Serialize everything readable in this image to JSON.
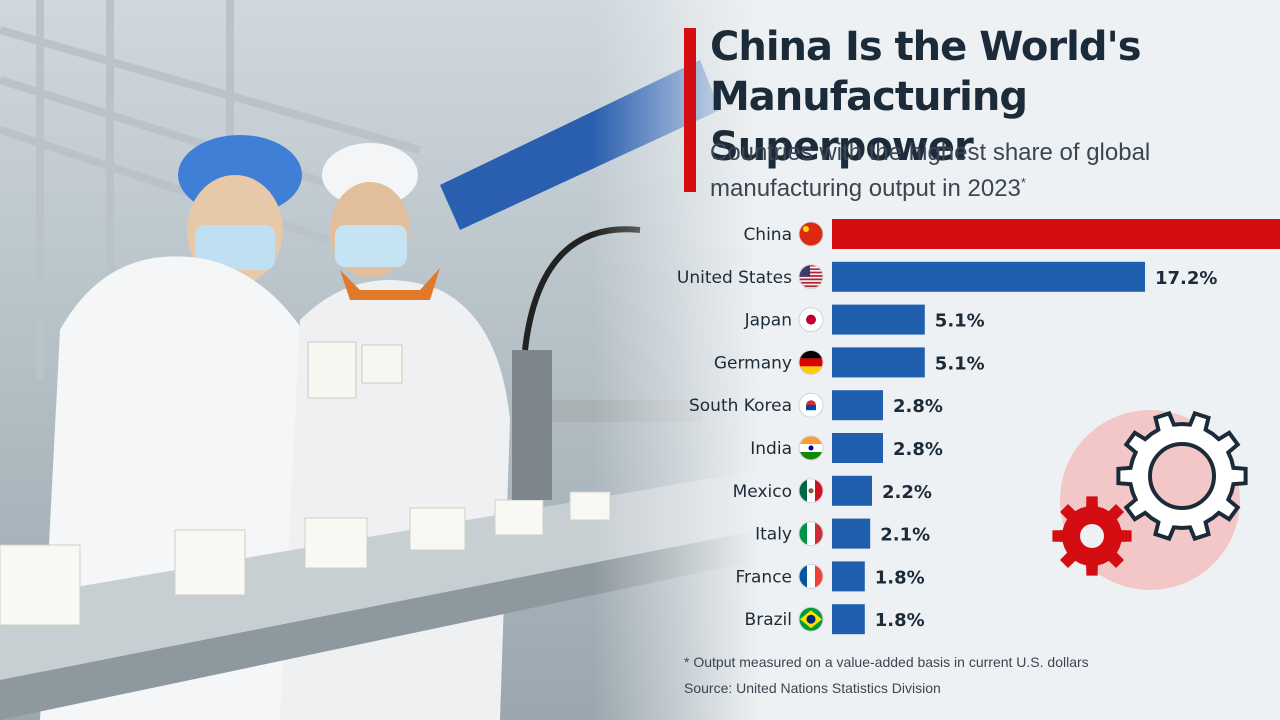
{
  "chart_data": {
    "type": "bar",
    "orientation": "horizontal",
    "title": "China Is the World's Manufacturing Superpower",
    "subtitle": "Countries with the highest share of global manufacturing output in 2023",
    "subtitle_mark": "*",
    "categories": [
      "China",
      "United States",
      "Japan",
      "Germany",
      "South Korea",
      "India",
      "Mexico",
      "Italy",
      "France",
      "Brazil"
    ],
    "values": [
      29.0,
      17.2,
      5.1,
      5.1,
      2.8,
      2.8,
      2.2,
      2.1,
      1.8,
      1.8
    ],
    "value_labels": [
      "",
      "17.2%",
      "5.1%",
      "5.1%",
      "2.8%",
      "2.8%",
      "2.2%",
      "2.1%",
      "1.8%",
      "1.8%"
    ],
    "bar_colors": [
      "#d40d12",
      "#1f5fae",
      "#1f5fae",
      "#1f5fae",
      "#1f5fae",
      "#1f5fae",
      "#1f5fae",
      "#1f5fae",
      "#1f5fae",
      "#1f5fae"
    ],
    "flags": [
      "china-flag-icon",
      "us-flag-icon",
      "japan-flag-icon",
      "germany-flag-icon",
      "south-korea-flag-icon",
      "india-flag-icon",
      "mexico-flag-icon",
      "italy-flag-icon",
      "france-flag-icon",
      "brazil-flag-icon"
    ],
    "footnote": "* Output measured on a value-added basis in current U.S. dollars",
    "source": "Source: United Nations Statistics Division"
  },
  "colors": {
    "accent_red": "#d40d12",
    "bar_blue": "#1f5fae",
    "text_dark": "#1c2b3a"
  },
  "decor": {
    "gear_icons": [
      "large-gear-icon",
      "small-gear-icon"
    ]
  }
}
